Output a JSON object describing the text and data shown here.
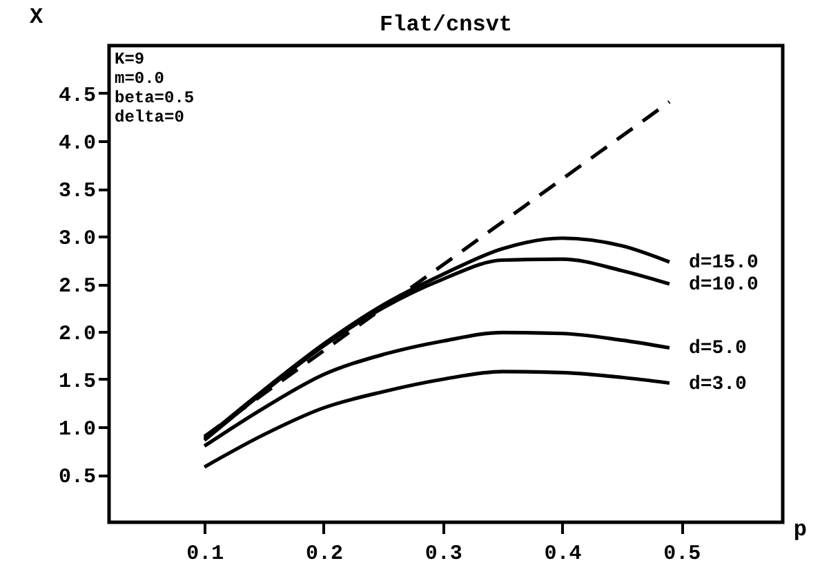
{
  "chart_data": {
    "type": "line",
    "title": "Flat/cnsvt",
    "xlabel": "p",
    "ylabel": "X",
    "annotations": [
      "K=9",
      "m=0.0",
      "beta=0.5",
      "delta=0"
    ],
    "xlim": [
      0.02,
      0.585
    ],
    "ylim": [
      0,
      5
    ],
    "xticks": [
      0.1,
      0.2,
      0.3,
      0.4,
      0.5
    ],
    "yticks": [
      0.5,
      {
        "value": 1,
        "label": "1.0"
      },
      1.5,
      {
        "value": 2,
        "label": "2.0"
      },
      2.5,
      {
        "value": 3,
        "label": "3.0"
      },
      3.5,
      {
        "value": 4,
        "label": "4.0"
      },
      4.5
    ],
    "x": [
      0.1,
      0.15,
      0.2,
      0.25,
      0.3,
      0.35,
      0.4,
      0.45,
      0.49
    ],
    "grid": false,
    "legend": false,
    "marker": "none",
    "series": [
      {
        "name": "d=15.0",
        "color": "#000000",
        "values": [
          0.88,
          1.39,
          1.87,
          2.28,
          2.6,
          2.87,
          2.98,
          2.9,
          2.73
        ]
      },
      {
        "name": "d=10.0",
        "color": "#000000",
        "values": [
          0.86,
          1.37,
          1.85,
          2.25,
          2.55,
          2.75,
          2.76,
          2.64,
          2.5
        ]
      },
      {
        "name": "d=5.0",
        "color": "#000000",
        "values": [
          0.8,
          1.2,
          1.55,
          1.76,
          1.9,
          1.99,
          1.98,
          1.91,
          1.83
        ]
      },
      {
        "name": "d=3.0",
        "color": "#000000",
        "values": [
          0.58,
          0.92,
          1.2,
          1.37,
          1.5,
          1.58,
          1.57,
          1.52,
          1.46
        ]
      },
      {
        "color": "#000000",
        "line_style": "dashed",
        "x": [
          0.1,
          0.49
        ],
        "values": [
          0.9,
          4.41
        ]
      }
    ]
  }
}
